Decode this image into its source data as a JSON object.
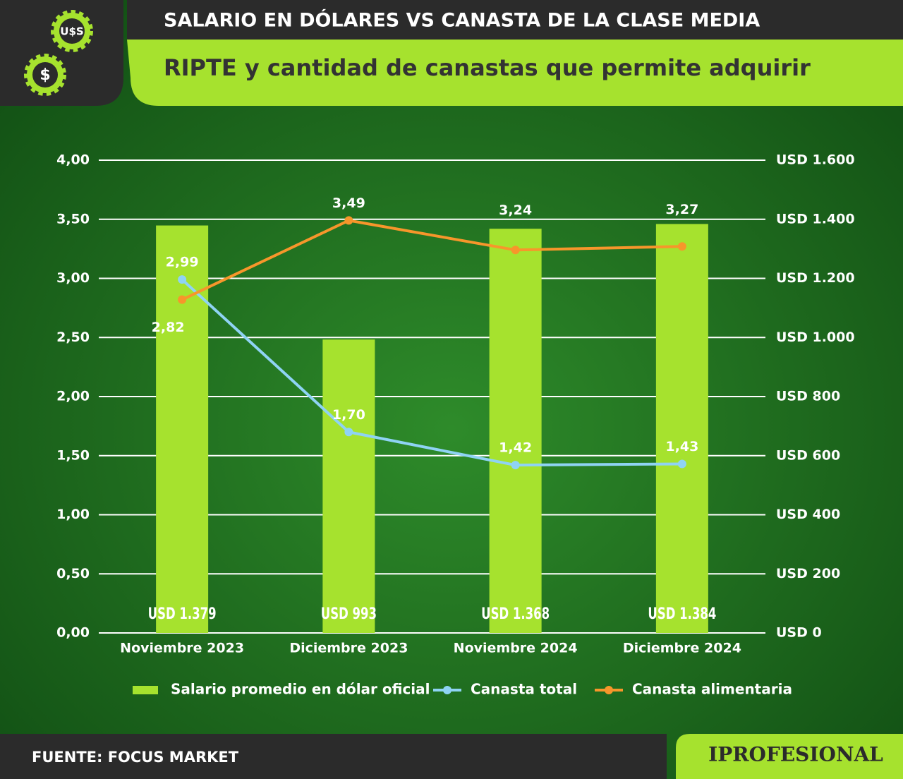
{
  "chart_data": {
    "type": "bar_line",
    "title": "SALARIO EN DÓLARES VS CANASTA DE LA CLASE MEDIA",
    "subtitle": "RIPTE y cantidad de canastas que permite adquirir",
    "categories": [
      "Noviembre 2023",
      "Diciembre 2023",
      "Noviembre 2024",
      "Diciembre 2024"
    ],
    "series": [
      {
        "name": "Salario promedio en dólar oficial",
        "type": "bar",
        "axis": "y2",
        "color": "#a6e22e",
        "values": [
          1379,
          993,
          1368,
          1384
        ],
        "value_labels": [
          "USD 1.379",
          "USD 993",
          "USD 1.368",
          "USD 1.384"
        ]
      },
      {
        "name": "Canasta total",
        "type": "line",
        "axis": "y",
        "color": "#8fd3f4",
        "values": [
          2.99,
          1.7,
          1.42,
          1.43
        ],
        "value_labels": [
          "2,99",
          "1,70",
          "1,42",
          "1,43"
        ]
      },
      {
        "name": "Canasta alimentaria",
        "type": "line",
        "axis": "y",
        "color": "#f7962b",
        "values": [
          2.82,
          3.49,
          3.24,
          3.27
        ],
        "value_labels": [
          "2,82",
          "3,49",
          "3,24",
          "3,27"
        ]
      }
    ],
    "ylim": [
      0,
      4
    ],
    "yticks": [
      {
        "value": 0,
        "label": "0,00"
      },
      {
        "value": 0.5,
        "label": "0,50"
      },
      {
        "value": 1,
        "label": "1,00"
      },
      {
        "value": 1.5,
        "label": "1,50"
      },
      {
        "value": 2,
        "label": "2,00"
      },
      {
        "value": 2.5,
        "label": "2,50"
      },
      {
        "value": 3,
        "label": "3,00"
      },
      {
        "value": 3.5,
        "label": "3,50"
      },
      {
        "value": 4,
        "label": "4,00"
      }
    ],
    "y2lim": [
      0,
      1600
    ],
    "y2ticks": [
      {
        "value": 0,
        "label": "USD 0"
      },
      {
        "value": 200,
        "label": "USD 200"
      },
      {
        "value": 400,
        "label": "USD 400"
      },
      {
        "value": 600,
        "label": "USD 600"
      },
      {
        "value": 800,
        "label": "USD 800"
      },
      {
        "value": 1000,
        "label": "USD 1.000"
      },
      {
        "value": 1200,
        "label": "USD 1.200"
      },
      {
        "value": 1400,
        "label": "USD 1.400"
      },
      {
        "value": 1600,
        "label": "USD 1.600"
      }
    ],
    "grid": true,
    "legend": "bottom",
    "source": "FUENTE: FOCUS MARKET",
    "brand": "IPROFESIONAL",
    "logo_texts": [
      "U$S",
      "$"
    ]
  }
}
